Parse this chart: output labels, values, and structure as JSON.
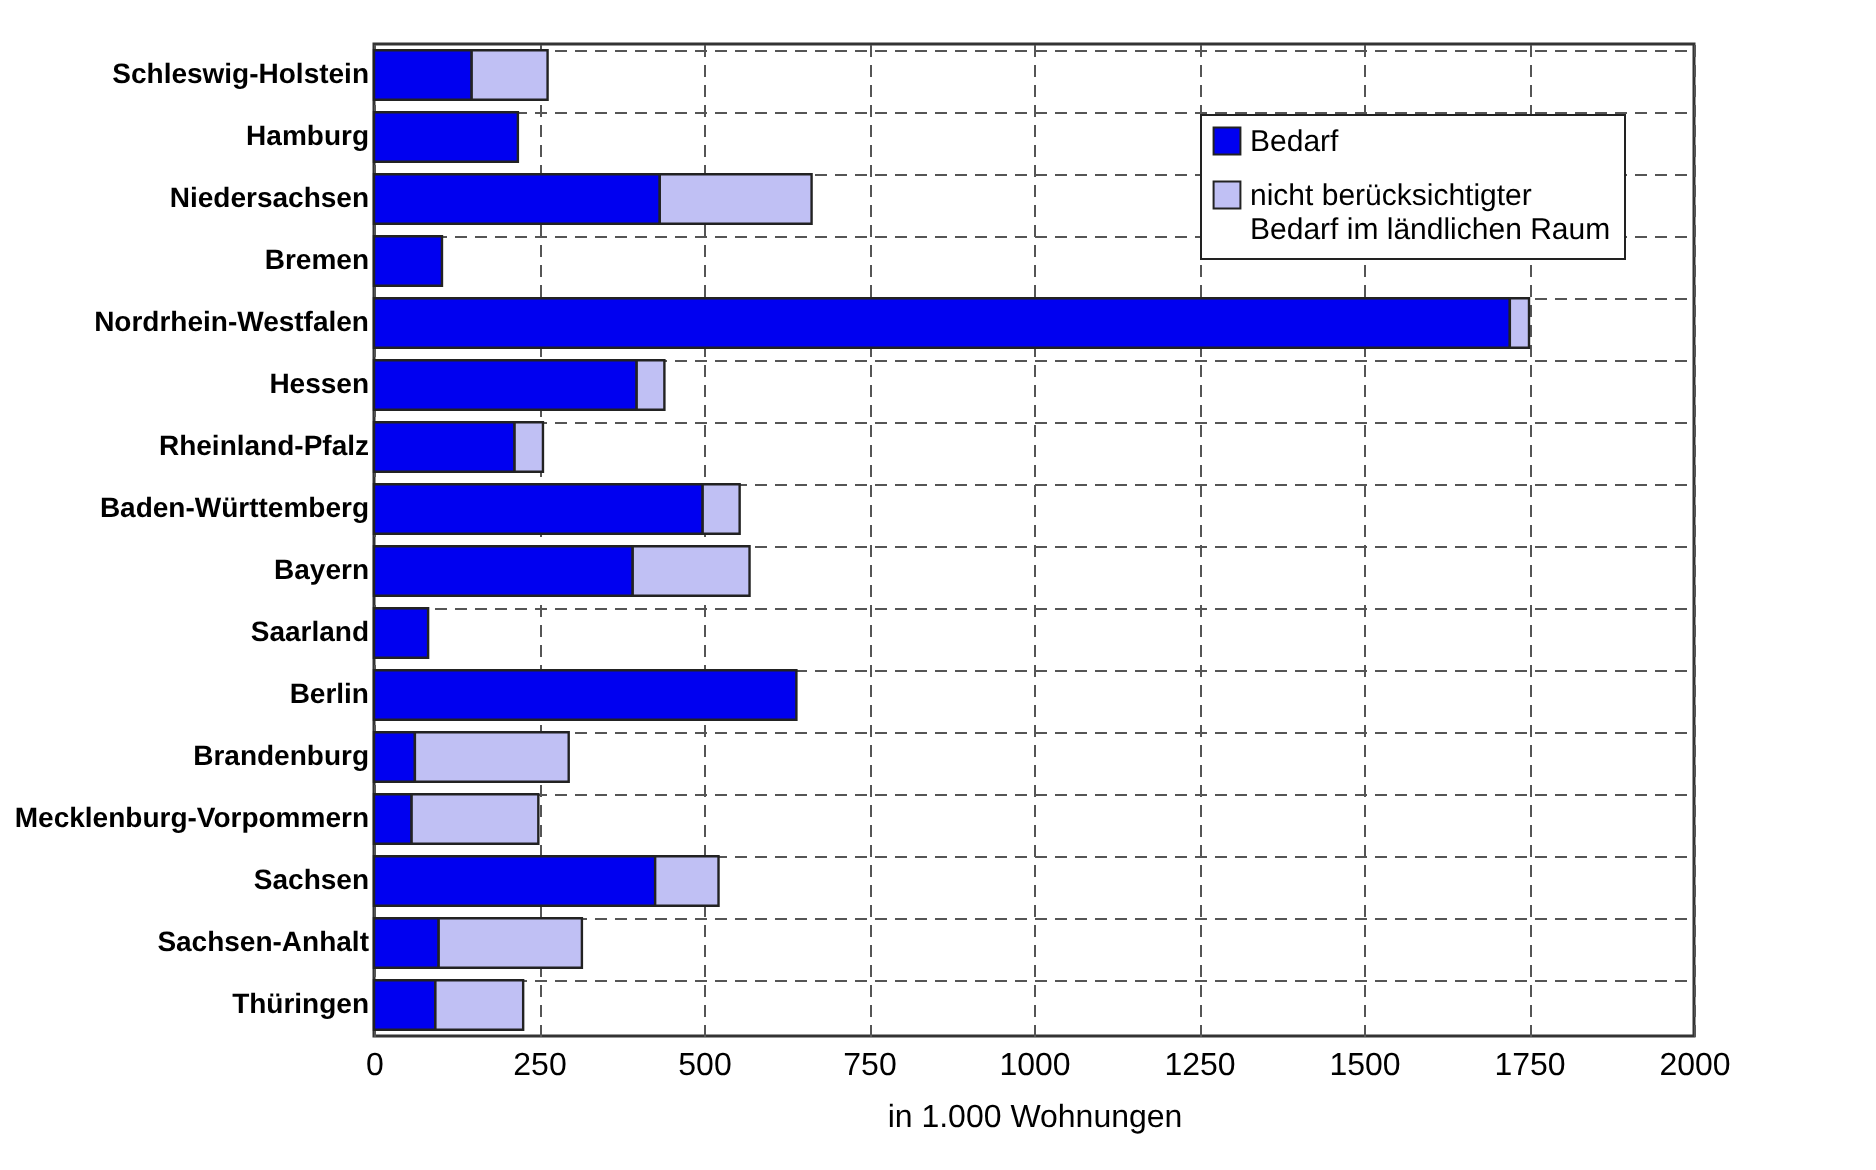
{
  "chart_data": {
    "type": "bar",
    "orientation": "horizontal",
    "stacked": true,
    "categories": [
      "Schleswig-Holstein",
      "Hamburg",
      "Niedersachsen",
      "Bremen",
      "Nordrhein-Westfalen",
      "Hessen",
      "Rheinland-Pfalz",
      "Baden-Württemberg",
      "Bayern",
      "Saarland",
      "Berlin",
      "Brandenburg",
      "Mecklenburg-Vorpommern",
      "Sachsen",
      "Sachsen-Anhalt",
      "Thüringen"
    ],
    "series": [
      {
        "name": "Bedarf",
        "color": "#0000f0",
        "values": [
          148,
          218,
          433,
          103,
          1721,
          398,
          213,
          498,
          392,
          82,
          640,
          62,
          57,
          426,
          98,
          93
        ]
      },
      {
        "name": "nicht berücksichtigter Bedarf im ländlichen Raum",
        "color": "#c0c0f4",
        "values": [
          115,
          null,
          230,
          null,
          29,
          42,
          43,
          56,
          177,
          null,
          null,
          233,
          192,
          96,
          217,
          133
        ]
      }
    ],
    "xlabel": "in 1.000 Wohnungen",
    "xlim": [
      0,
      2000
    ],
    "xticks": [
      0,
      250,
      500,
      750,
      1000,
      1250,
      1500,
      1750,
      2000
    ],
    "grid": true,
    "legend": "top right"
  }
}
